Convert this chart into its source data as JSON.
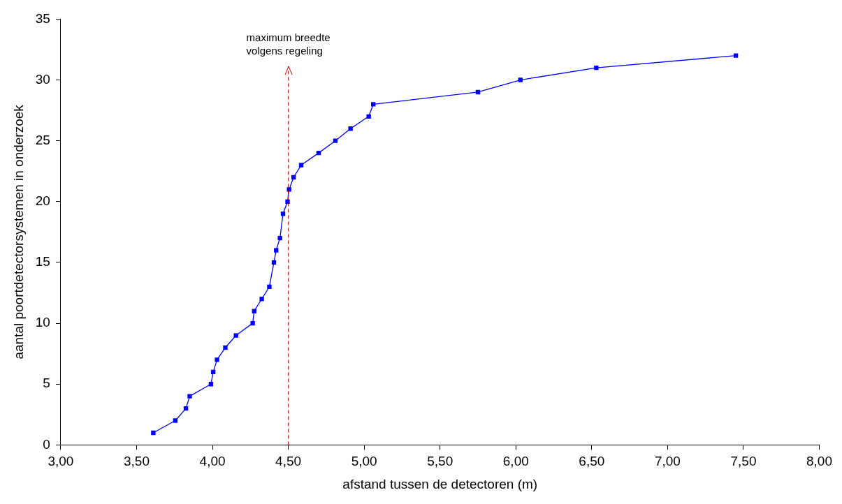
{
  "chart_data": {
    "type": "line",
    "xlabel": "afstand tussen de detectoren (m)",
    "ylabel": "aantal poortdetectorsystemen in onderzoek",
    "x": [
      3.61,
      3.755,
      3.825,
      3.85,
      3.99,
      4.005,
      4.03,
      4.085,
      4.155,
      4.265,
      4.275,
      4.325,
      4.375,
      4.405,
      4.42,
      4.445,
      4.465,
      4.495,
      4.505,
      4.535,
      4.585,
      4.7,
      4.81,
      4.91,
      5.03,
      5.06,
      5.75,
      6.03,
      6.53,
      7.45
    ],
    "series": [
      {
        "color": "#0000ff",
        "values": [
          1,
          2,
          3,
          4,
          5,
          6,
          7,
          8,
          9,
          10,
          11,
          12,
          13,
          15,
          16,
          17,
          19,
          20,
          21,
          22,
          23,
          24,
          25,
          26,
          27,
          28,
          29,
          30,
          31,
          32
        ]
      }
    ],
    "marker": "square",
    "line_style": "solid",
    "grid": false,
    "legend": false,
    "xlim": [
      3,
      8
    ],
    "ylim": [
      0,
      35
    ],
    "xticks": [
      {
        "value": 3,
        "label": "3,00"
      },
      {
        "value": 3.5,
        "label": "3,50"
      },
      {
        "value": 4,
        "label": "4,00"
      },
      {
        "value": 4.5,
        "label": "4,50"
      },
      {
        "value": 5,
        "label": "5,00"
      },
      {
        "value": 5.5,
        "label": "5,50"
      },
      {
        "value": 6,
        "label": "6,00"
      },
      {
        "value": 6.5,
        "label": "6,50"
      },
      {
        "value": 7,
        "label": "7,00"
      },
      {
        "value": 7.5,
        "label": "7,50"
      },
      {
        "value": 8,
        "label": "8,00"
      }
    ],
    "yticks": [
      0,
      5,
      10,
      15,
      20,
      25,
      30,
      35
    ],
    "ref_lines": [
      {
        "axis": "x",
        "value": 4.5,
        "label": "maximum breedte\nvolgens regeling",
        "color": "#cc0000",
        "line_style": "dashed"
      }
    ]
  }
}
